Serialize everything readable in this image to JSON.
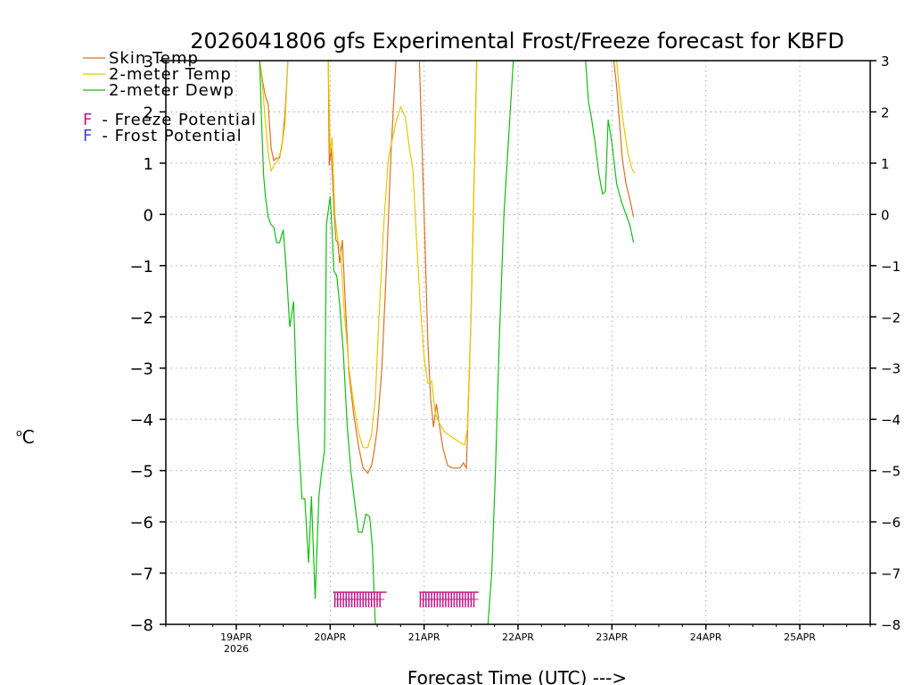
{
  "chart_data": {
    "type": "line",
    "title": "2026041806 gfs Experimental Frost/Freeze forecast for KBFD",
    "xlabel": "Forecast Time (UTC) --->",
    "ylabel": "oC",
    "ylabel_sup": "o",
    "ylabel_main": "C",
    "ylim": [
      -8,
      3
    ],
    "xlim": [
      -0.75,
      6.75
    ],
    "yticks": [
      3,
      2,
      1,
      0,
      -1,
      -2,
      -3,
      -4,
      -5,
      -6,
      -7,
      -8
    ],
    "ytick_labels": [
      "3",
      "2",
      "1",
      "0",
      "−1",
      "−2",
      "−3",
      "−4",
      "−5",
      "−6",
      "−7",
      "−8"
    ],
    "xticks": [
      0,
      1,
      2,
      3,
      4,
      5,
      6
    ],
    "xtick_labels": [
      "19APR",
      "20APR",
      "21APR",
      "22APR",
      "23APR",
      "24APR",
      "25APR"
    ],
    "xtick_year": "2026",
    "x_units": "days since 19APR 00Z",
    "grid": true,
    "legend": {
      "lines": [
        {
          "label": "Skin Temp",
          "color": "#e07020"
        },
        {
          "label": "2-meter Temp",
          "color": "#e8c800"
        },
        {
          "label": "2-meter Dewp",
          "color": "#10c010"
        }
      ],
      "markers": [
        {
          "symbol": "F",
          "text": "- Freeze Potential",
          "color": "#c8148c"
        },
        {
          "symbol": "F",
          "text": "- Frost Potential",
          "color": "#4040e0"
        }
      ]
    },
    "series": [
      {
        "name": "Skin Temp",
        "color": "#e07020",
        "segments": [
          [
            [
              0.25,
              3.0
            ],
            [
              0.28,
              2.6
            ],
            [
              0.31,
              2.3
            ],
            [
              0.34,
              2.15
            ],
            [
              0.37,
              1.3
            ],
            [
              0.4,
              1.05
            ],
            [
              0.43,
              1.1
            ],
            [
              0.46,
              1.1
            ],
            [
              0.49,
              1.4
            ],
            [
              0.52,
              2.0
            ],
            [
              0.55,
              3.0
            ]
          ],
          [
            [
              0.98,
              3.0
            ],
            [
              0.99,
              0.95
            ],
            [
              1.01,
              1.3
            ],
            [
              1.04,
              0.1
            ],
            [
              1.06,
              -0.5
            ],
            [
              1.08,
              -0.55
            ],
            [
              1.1,
              -0.95
            ],
            [
              1.13,
              -0.5
            ],
            [
              1.16,
              -1.7
            ],
            [
              1.2,
              -3.1
            ],
            [
              1.25,
              -3.9
            ],
            [
              1.3,
              -4.5
            ],
            [
              1.35,
              -4.95
            ],
            [
              1.4,
              -5.05
            ],
            [
              1.44,
              -4.9
            ],
            [
              1.47,
              -4.6
            ],
            [
              1.5,
              -4.2
            ],
            [
              1.55,
              -3.0
            ],
            [
              1.6,
              -1.0
            ],
            [
              1.65,
              1.3
            ],
            [
              1.7,
              3.0
            ]
          ],
          [
            [
              1.95,
              3.0
            ],
            [
              2.0,
              0.0
            ],
            [
              2.04,
              -2.5
            ],
            [
              2.07,
              -3.6
            ],
            [
              2.1,
              -4.15
            ],
            [
              2.13,
              -3.7
            ],
            [
              2.17,
              -4.2
            ],
            [
              2.2,
              -4.55
            ],
            [
              2.25,
              -4.9
            ],
            [
              2.3,
              -4.95
            ],
            [
              2.38,
              -4.95
            ],
            [
              2.42,
              -4.85
            ],
            [
              2.45,
              -4.95
            ],
            [
              2.5,
              -2.0
            ],
            [
              2.53,
              0.5
            ],
            [
              2.56,
              3.0
            ]
          ],
          [
            [
              4.02,
              3.0
            ],
            [
              4.05,
              2.5
            ],
            [
              4.08,
              1.8
            ],
            [
              4.11,
              1.1
            ],
            [
              4.15,
              0.6
            ],
            [
              4.19,
              0.3
            ],
            [
              4.23,
              -0.05
            ]
          ]
        ]
      },
      {
        "name": "2-meter Temp",
        "color": "#e8c800",
        "segments": [
          [
            [
              0.25,
              3.0
            ],
            [
              0.28,
              2.5
            ],
            [
              0.31,
              1.8
            ],
            [
              0.34,
              1.2
            ],
            [
              0.37,
              0.85
            ],
            [
              0.4,
              0.95
            ],
            [
              0.44,
              1.05
            ],
            [
              0.48,
              1.25
            ],
            [
              0.52,
              1.8
            ],
            [
              0.55,
              3.0
            ]
          ],
          [
            [
              0.98,
              3.0
            ],
            [
              1.0,
              1.2
            ],
            [
              1.02,
              1.5
            ],
            [
              1.05,
              0.0
            ],
            [
              1.08,
              -0.5
            ],
            [
              1.11,
              -0.7
            ],
            [
              1.15,
              -1.9
            ],
            [
              1.2,
              -3.0
            ],
            [
              1.25,
              -3.7
            ],
            [
              1.3,
              -4.25
            ],
            [
              1.35,
              -4.55
            ],
            [
              1.4,
              -4.55
            ],
            [
              1.44,
              -4.3
            ],
            [
              1.48,
              -3.6
            ],
            [
              1.52,
              -2.0
            ],
            [
              1.57,
              -0.2
            ],
            [
              1.62,
              1.1
            ],
            [
              1.7,
              1.8
            ],
            [
              1.75,
              2.1
            ],
            [
              1.8,
              1.9
            ],
            [
              1.85,
              1.2
            ]
          ],
          [
            [
              1.85,
              1.2
            ],
            [
              1.88,
              0.9
            ],
            [
              1.92,
              -0.5
            ],
            [
              1.96,
              -1.8
            ],
            [
              2.0,
              -2.8
            ],
            [
              2.04,
              -3.3
            ],
            [
              2.08,
              -3.25
            ],
            [
              2.12,
              -3.9
            ],
            [
              2.17,
              -4.1
            ],
            [
              2.22,
              -4.25
            ],
            [
              2.3,
              -4.35
            ],
            [
              2.38,
              -4.45
            ],
            [
              2.43,
              -4.5
            ],
            [
              2.46,
              -4.2
            ],
            [
              2.5,
              -2.0
            ],
            [
              2.53,
              0.5
            ],
            [
              2.56,
              3.0
            ]
          ],
          [
            [
              4.05,
              3.0
            ],
            [
              4.08,
              2.4
            ],
            [
              4.12,
              1.8
            ],
            [
              4.17,
              1.2
            ],
            [
              4.21,
              0.9
            ],
            [
              4.24,
              0.8
            ]
          ]
        ]
      },
      {
        "name": "2-meter Dewp",
        "color": "#10c010",
        "segments": [
          [
            [
              0.25,
              3.0
            ],
            [
              0.27,
              1.8
            ],
            [
              0.29,
              0.8
            ],
            [
              0.31,
              0.35
            ],
            [
              0.34,
              -0.05
            ],
            [
              0.37,
              -0.2
            ],
            [
              0.4,
              -0.25
            ],
            [
              0.43,
              -0.55
            ],
            [
              0.46,
              -0.55
            ],
            [
              0.5,
              -0.3
            ],
            [
              0.53,
              -1.0
            ],
            [
              0.57,
              -2.2
            ],
            [
              0.61,
              -1.7
            ],
            [
              0.65,
              -4.0
            ],
            [
              0.7,
              -5.55
            ],
            [
              0.73,
              -5.55
            ],
            [
              0.77,
              -6.8
            ],
            [
              0.8,
              -5.5
            ],
            [
              0.84,
              -7.5
            ],
            [
              0.88,
              -5.5
            ],
            [
              0.91,
              -5.0
            ],
            [
              0.94,
              -4.6
            ],
            [
              0.96,
              -0.2
            ],
            [
              1.0,
              0.35
            ],
            [
              1.02,
              -0.3
            ],
            [
              1.04,
              -1.1
            ],
            [
              1.07,
              -1.2
            ],
            [
              1.1,
              -1.75
            ],
            [
              1.14,
              -2.7
            ],
            [
              1.18,
              -4.1
            ],
            [
              1.22,
              -5.0
            ],
            [
              1.26,
              -5.6
            ],
            [
              1.3,
              -6.2
            ],
            [
              1.34,
              -6.2
            ],
            [
              1.38,
              -5.85
            ],
            [
              1.42,
              -5.9
            ],
            [
              1.45,
              -6.5
            ],
            [
              1.48,
              -8.0
            ]
          ],
          [
            [
              2.68,
              -8.0
            ],
            [
              2.72,
              -7.0
            ],
            [
              2.76,
              -5.0
            ],
            [
              2.8,
              -2.5
            ],
            [
              2.85,
              0.0
            ],
            [
              2.9,
              1.5
            ],
            [
              2.95,
              3.0
            ]
          ],
          [
            [
              3.72,
              3.0
            ],
            [
              3.75,
              2.2
            ],
            [
              3.78,
              1.9
            ],
            [
              3.82,
              1.4
            ],
            [
              3.86,
              0.8
            ],
            [
              3.9,
              0.4
            ],
            [
              3.93,
              0.45
            ],
            [
              3.96,
              1.85
            ],
            [
              4.0,
              1.4
            ],
            [
              4.05,
              0.6
            ],
            [
              4.1,
              0.25
            ],
            [
              4.15,
              0.0
            ],
            [
              4.19,
              -0.2
            ],
            [
              4.23,
              -0.55
            ]
          ]
        ]
      }
    ],
    "freeze_potential_ticks": [
      {
        "start": 1.03,
        "end": 1.6,
        "marks": [
          1.05,
          1.08,
          1.11,
          1.14,
          1.17,
          1.2,
          1.23,
          1.26,
          1.29,
          1.32,
          1.35,
          1.38,
          1.41,
          1.44,
          1.47,
          1.5,
          1.53
        ]
      },
      {
        "start": 1.95,
        "end": 2.58,
        "marks": [
          1.96,
          1.99,
          2.02,
          2.05,
          2.08,
          2.11,
          2.14,
          2.17,
          2.2,
          2.23,
          2.26,
          2.29,
          2.32,
          2.35,
          2.38,
          2.41,
          2.44,
          2.47,
          2.5,
          2.53
        ]
      }
    ]
  }
}
